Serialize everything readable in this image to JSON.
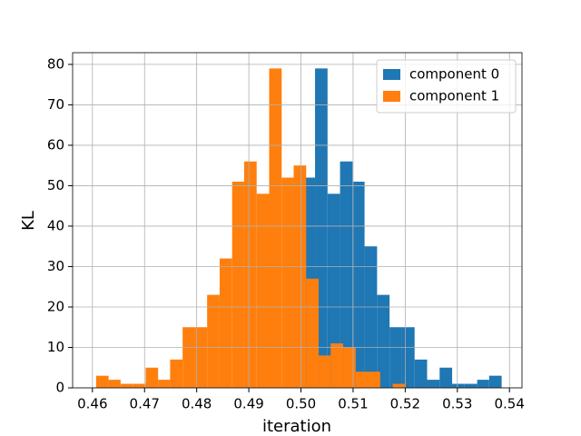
{
  "chart_data": {
    "type": "histogram",
    "xlabel": "iteration",
    "ylabel": "KL",
    "series": [
      {
        "name": "component 0",
        "color": "#1f77b4",
        "bins": [
          0.5003,
          0.5027,
          0.5051,
          0.5075,
          0.5099,
          0.5122,
          0.5146,
          0.517,
          0.5194,
          0.5218,
          0.5242,
          0.5266,
          0.529,
          0.5314,
          0.5338,
          0.5361,
          0.5385
        ],
        "values": [
          52,
          79,
          48,
          56,
          51,
          35,
          23,
          15,
          15,
          7,
          2,
          5,
          1,
          1,
          2,
          3
        ]
      },
      {
        "name": "component 1",
        "color": "#ff7f0e",
        "bins": [
          0.4607,
          0.4631,
          0.4654,
          0.4678,
          0.4702,
          0.4726,
          0.4749,
          0.4773,
          0.4797,
          0.482,
          0.4844,
          0.4868,
          0.4891,
          0.4915,
          0.4939,
          0.4963,
          0.4986,
          0.501,
          0.5034,
          0.5057,
          0.5081,
          0.5105,
          0.5128,
          0.5152,
          0.5176,
          0.52
        ],
        "values": [
          3,
          2,
          1,
          1,
          5,
          2,
          7,
          15,
          15,
          23,
          32,
          51,
          56,
          48,
          79,
          52,
          55,
          27,
          8,
          11,
          10,
          4,
          4,
          0,
          1
        ]
      }
    ],
    "xlim": [
      0.4562,
      0.5424
    ],
    "ylim": [
      0,
      82.9
    ],
    "xticks": [
      0.46,
      0.47,
      0.48,
      0.49,
      {
        "value": 0.5,
        "label": "0.50"
      },
      0.51,
      0.52,
      0.53,
      0.54
    ],
    "yticks": [
      0,
      10,
      20,
      30,
      40,
      50,
      60,
      70,
      80
    ],
    "grid": true,
    "legend": "upper right"
  }
}
